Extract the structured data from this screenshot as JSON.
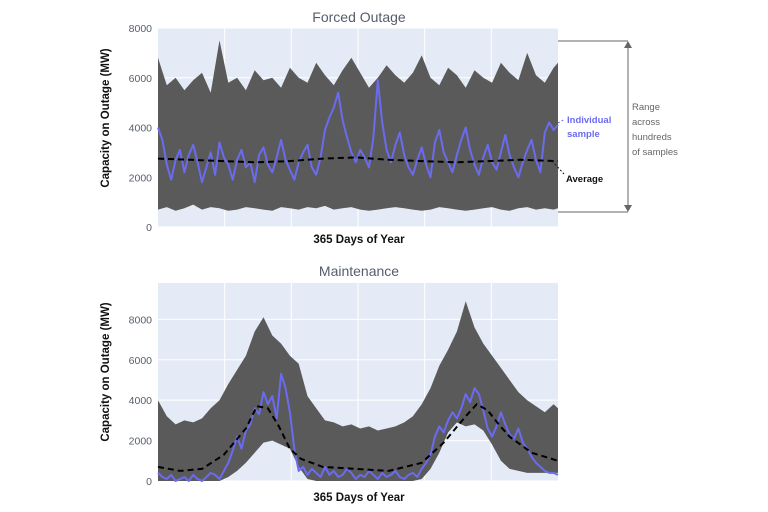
{
  "chart_data": [
    {
      "type": "area",
      "title": "Forced Outage",
      "xlabel": "365 Days of Year",
      "ylabel": "Capacity on Outage (MW)",
      "xlim": [
        1,
        365
      ],
      "ylim": [
        0,
        8000
      ],
      "yticks": [
        0,
        2000,
        4000,
        6000,
        8000
      ],
      "grid": true,
      "colors": {
        "plot_bg": "#e5ebf6",
        "band": "#5a5a5a",
        "sample": "#6b6bf0",
        "average": "#000000",
        "grid": "#ffffff"
      },
      "series": [
        {
          "name": "Range across hundreds of samples",
          "x": [
            1,
            9,
            17,
            25,
            33,
            41,
            49,
            57,
            65,
            73,
            81,
            89,
            97,
            105,
            113,
            121,
            129,
            137,
            145,
            153,
            161,
            169,
            177,
            185,
            193,
            201,
            209,
            217,
            225,
            233,
            241,
            249,
            257,
            265,
            273,
            281,
            289,
            297,
            305,
            313,
            321,
            329,
            337,
            345,
            353,
            361,
            365
          ],
          "low": [
            700,
            800,
            650,
            750,
            900,
            700,
            800,
            750,
            650,
            700,
            800,
            750,
            700,
            650,
            800,
            750,
            700,
            800,
            750,
            850,
            700,
            750,
            800,
            700,
            650,
            700,
            750,
            800,
            750,
            700,
            650,
            700,
            800,
            750,
            700,
            650,
            700,
            750,
            800,
            700,
            650,
            750,
            800,
            700,
            750,
            700,
            750
          ],
          "high": [
            6800,
            5700,
            6000,
            5500,
            5900,
            6200,
            5400,
            7500,
            5800,
            6000,
            5500,
            6300,
            5900,
            6000,
            5600,
            6400,
            6000,
            5800,
            6600,
            6100,
            5700,
            6300,
            6800,
            6200,
            5600,
            6000,
            6500,
            6100,
            5800,
            6200,
            6900,
            6000,
            5700,
            6400,
            6100,
            5600,
            6300,
            6000,
            5800,
            6600,
            6200,
            5900,
            7000,
            6100,
            5800,
            6400,
            6600
          ]
        },
        {
          "name": "Individual sample",
          "x": [
            1,
            5,
            9,
            13,
            17,
            21,
            25,
            29,
            33,
            37,
            41,
            45,
            49,
            53,
            57,
            61,
            65,
            69,
            73,
            77,
            81,
            85,
            89,
            93,
            97,
            101,
            105,
            109,
            113,
            117,
            121,
            125,
            129,
            133,
            137,
            141,
            145,
            149,
            153,
            157,
            161,
            165,
            169,
            173,
            177,
            181,
            185,
            189,
            193,
            197,
            201,
            205,
            209,
            213,
            217,
            221,
            225,
            229,
            233,
            237,
            241,
            245,
            249,
            253,
            257,
            261,
            265,
            269,
            273,
            277,
            281,
            285,
            289,
            293,
            297,
            301,
            305,
            309,
            313,
            317,
            321,
            325,
            329,
            333,
            337,
            341,
            345,
            349,
            353,
            357,
            361,
            365
          ],
          "values": [
            4000,
            3500,
            2500,
            1900,
            2700,
            3100,
            2200,
            2900,
            3300,
            2600,
            1800,
            2400,
            3000,
            2100,
            3400,
            2800,
            2500,
            1900,
            2700,
            3100,
            2400,
            2600,
            1800,
            2900,
            3200,
            2500,
            2200,
            2800,
            3500,
            2700,
            2300,
            1900,
            2600,
            3000,
            3300,
            2400,
            2100,
            2800,
            3900,
            4400,
            4800,
            5400,
            4300,
            3600,
            3000,
            2600,
            3100,
            2800,
            2400,
            3600,
            5900,
            4200,
            3100,
            2600,
            3300,
            3800,
            2900,
            2400,
            2100,
            2700,
            3200,
            2500,
            2000,
            3400,
            3900,
            3000,
            2600,
            2200,
            2900,
            3500,
            4000,
            3100,
            2500,
            2100,
            2800,
            3300,
            2600,
            2300,
            3000,
            3700,
            2900,
            2400,
            2000,
            2600,
            3100,
            3500,
            2700,
            2200,
            3800,
            4200,
            3900,
            4100
          ]
        },
        {
          "name": "Average",
          "x": [
            1,
            31,
            61,
            91,
            121,
            151,
            181,
            211,
            241,
            271,
            301,
            331,
            365
          ],
          "values": [
            2750,
            2700,
            2650,
            2600,
            2650,
            2750,
            2800,
            2700,
            2650,
            2600,
            2650,
            2700,
            2650
          ]
        }
      ],
      "annotations": {
        "sample_label": "Individual\nsample",
        "average_label": "Average",
        "range_label": "Range\nacross\nhundreds\nof samples"
      }
    },
    {
      "type": "area",
      "title": "Maintenance",
      "xlabel": "365 Days of Year",
      "ylabel": "Capacity on Outage (MW)",
      "xlim": [
        1,
        365
      ],
      "ylim": [
        0,
        9800
      ],
      "yticks": [
        0,
        2000,
        4000,
        6000,
        8000
      ],
      "grid": true,
      "colors": {
        "plot_bg": "#e5ebf6",
        "band": "#5a5a5a",
        "sample": "#6b6bf0",
        "average": "#000000",
        "grid": "#ffffff"
      },
      "series": [
        {
          "name": "Range",
          "x": [
            1,
            9,
            17,
            25,
            33,
            41,
            49,
            57,
            65,
            73,
            81,
            89,
            97,
            105,
            113,
            121,
            129,
            137,
            145,
            153,
            161,
            169,
            177,
            185,
            193,
            201,
            209,
            217,
            225,
            233,
            241,
            249,
            257,
            265,
            273,
            281,
            289,
            297,
            305,
            313,
            321,
            329,
            337,
            345,
            353,
            361,
            365
          ],
          "low": [
            0,
            0,
            0,
            0,
            0,
            0,
            0,
            0,
            200,
            500,
            900,
            1400,
            1900,
            2000,
            1800,
            1600,
            700,
            100,
            0,
            0,
            0,
            0,
            0,
            0,
            0,
            0,
            0,
            0,
            0,
            0,
            100,
            600,
            1400,
            2400,
            2900,
            2700,
            2800,
            2500,
            1800,
            1000,
            600,
            500,
            400,
            400,
            400,
            400,
            400
          ],
          "high": [
            4000,
            3200,
            2800,
            3000,
            2900,
            3100,
            3600,
            4000,
            4800,
            5500,
            6200,
            7400,
            8100,
            7200,
            6800,
            6200,
            5800,
            4200,
            3600,
            3000,
            2900,
            2700,
            2800,
            2600,
            2700,
            2500,
            2600,
            2700,
            2900,
            3200,
            3800,
            4600,
            5700,
            6500,
            7400,
            8900,
            7600,
            6800,
            6200,
            5600,
            5000,
            4400,
            4000,
            3700,
            3400,
            3800,
            3600
          ]
        },
        {
          "name": "Sample",
          "x": [
            1,
            5,
            9,
            13,
            17,
            21,
            25,
            29,
            33,
            37,
            41,
            45,
            49,
            53,
            57,
            61,
            65,
            69,
            73,
            77,
            81,
            85,
            89,
            93,
            97,
            101,
            105,
            109,
            113,
            117,
            121,
            125,
            129,
            133,
            137,
            141,
            145,
            149,
            153,
            157,
            161,
            165,
            169,
            173,
            177,
            181,
            185,
            189,
            193,
            197,
            201,
            205,
            209,
            213,
            217,
            221,
            225,
            229,
            233,
            237,
            241,
            245,
            249,
            253,
            257,
            261,
            265,
            269,
            273,
            277,
            281,
            285,
            289,
            293,
            297,
            301,
            305,
            309,
            313,
            317,
            321,
            325,
            329,
            333,
            337,
            341,
            345,
            349,
            353,
            357,
            361,
            365
          ],
          "values": [
            400,
            200,
            100,
            300,
            0,
            100,
            200,
            0,
            300,
            100,
            0,
            200,
            400,
            300,
            100,
            500,
            900,
            1500,
            2200,
            1600,
            2500,
            2800,
            3600,
            3300,
            4400,
            3800,
            4200,
            3100,
            5300,
            4600,
            3400,
            1600,
            500,
            700,
            300,
            600,
            400,
            200,
            700,
            300,
            500,
            200,
            300,
            600,
            400,
            100,
            300,
            200,
            500,
            300,
            100,
            400,
            200,
            300,
            500,
            200,
            100,
            300,
            400,
            200,
            600,
            900,
            1300,
            2200,
            2700,
            2400,
            3000,
            3400,
            3100,
            3600,
            4300,
            3900,
            4600,
            4300,
            3500,
            2600,
            2200,
            2700,
            3400,
            2800,
            2300,
            2100,
            2600,
            1900,
            1600,
            1200,
            900,
            700,
            500,
            400,
            400,
            300
          ]
        },
        {
          "name": "Average",
          "x": [
            1,
            21,
            41,
            61,
            81,
            91,
            101,
            111,
            121,
            131,
            151,
            181,
            211,
            241,
            261,
            281,
            291,
            301,
            311,
            321,
            341,
            365
          ],
          "values": [
            700,
            500,
            600,
            1300,
            2600,
            3700,
            3600,
            2700,
            1600,
            1100,
            700,
            600,
            500,
            900,
            1900,
            3200,
            3800,
            3500,
            2800,
            2200,
            1400,
            1000
          ]
        }
      ]
    }
  ]
}
